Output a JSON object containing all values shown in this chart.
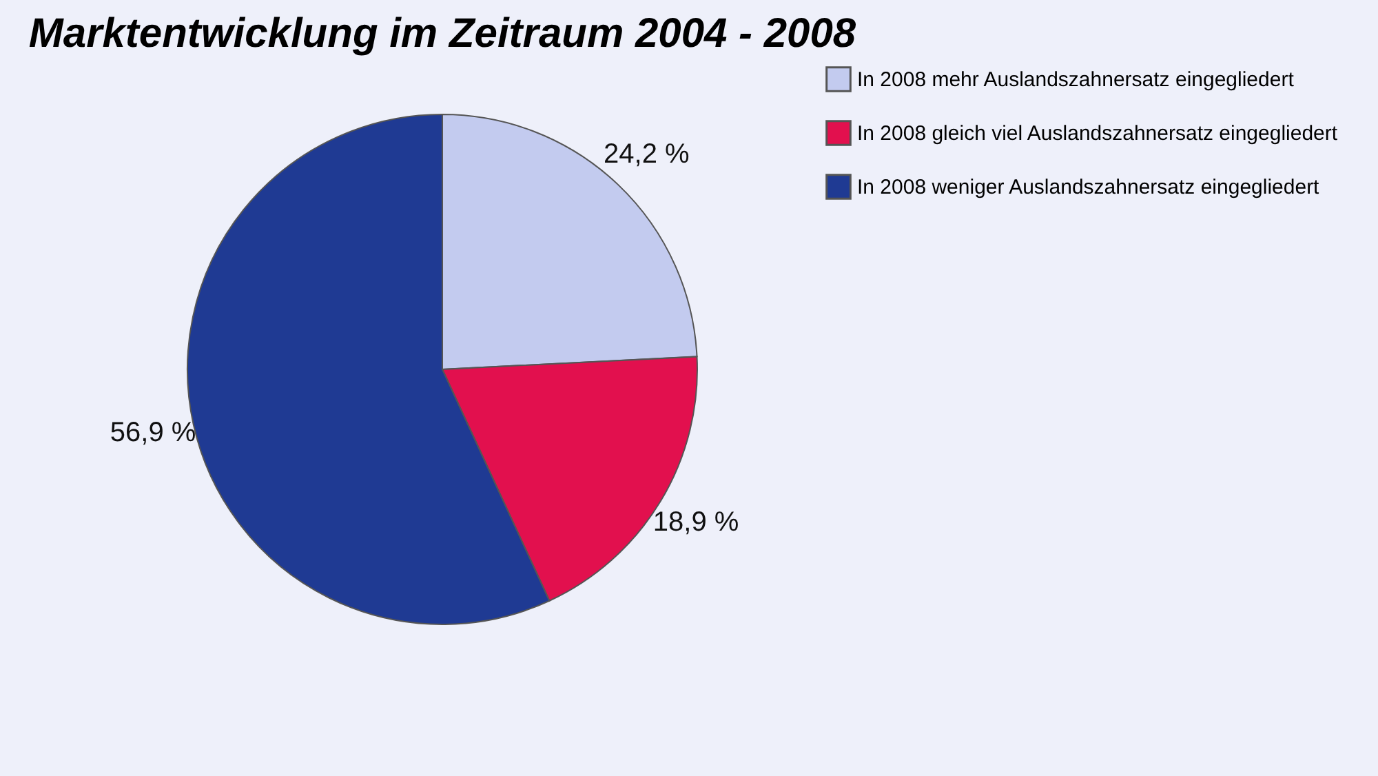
{
  "chart_data": {
    "type": "pie",
    "title": "Marktentwicklung im Zeitraum 2004 - 2008",
    "categories": [
      "In 2008 mehr Auslandszahnersatz eingegliedert",
      "In 2008 gleich viel Auslandszahnersatz eingegliedert",
      "In 2008 weniger Auslandszahnersatz eingegliedert"
    ],
    "values": [
      24.2,
      18.9,
      56.9
    ],
    "value_labels": [
      "24,2 %",
      "18,9 %",
      "56,9 %"
    ],
    "colors": [
      "#c3cbef",
      "#e2104e",
      "#1f3a93"
    ],
    "legend": "right"
  }
}
